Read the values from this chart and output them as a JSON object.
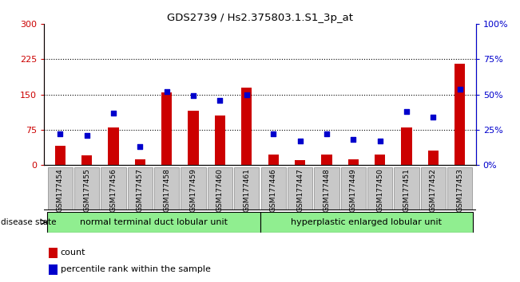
{
  "title": "GDS2739 / Hs2.375803.1.S1_3p_at",
  "samples": [
    "GSM177454",
    "GSM177455",
    "GSM177456",
    "GSM177457",
    "GSM177458",
    "GSM177459",
    "GSM177460",
    "GSM177461",
    "GSM177446",
    "GSM177447",
    "GSM177448",
    "GSM177449",
    "GSM177450",
    "GSM177451",
    "GSM177452",
    "GSM177453"
  ],
  "counts": [
    40,
    20,
    80,
    12,
    155,
    115,
    105,
    165,
    22,
    10,
    22,
    12,
    22,
    80,
    30,
    215
  ],
  "percentiles": [
    22,
    21,
    37,
    13,
    52,
    49,
    46,
    50,
    22,
    17,
    22,
    18,
    17,
    38,
    34,
    54
  ],
  "group1_label": "normal terminal duct lobular unit",
  "group2_label": "hyperplastic enlarged lobular unit",
  "group1_count": 8,
  "group2_count": 8,
  "ylim_left": [
    0,
    300
  ],
  "ylim_right": [
    0,
    100
  ],
  "yticks_left": [
    0,
    75,
    150,
    225,
    300
  ],
  "yticks_right": [
    0,
    25,
    50,
    75,
    100
  ],
  "ytick_labels_right": [
    "0%",
    "25%",
    "50%",
    "75%",
    "100%"
  ],
  "bar_color": "#cc0000",
  "dot_color": "#0000cc",
  "background_color": "#ffffff",
  "xticklabel_bg": "#c8c8c8",
  "group_bg": "#90ee90",
  "legend_count_label": "count",
  "legend_pct_label": "percentile rank within the sample",
  "dot_size": 18,
  "bar_width": 0.4,
  "figsize": [
    6.51,
    3.54
  ],
  "dpi": 100
}
